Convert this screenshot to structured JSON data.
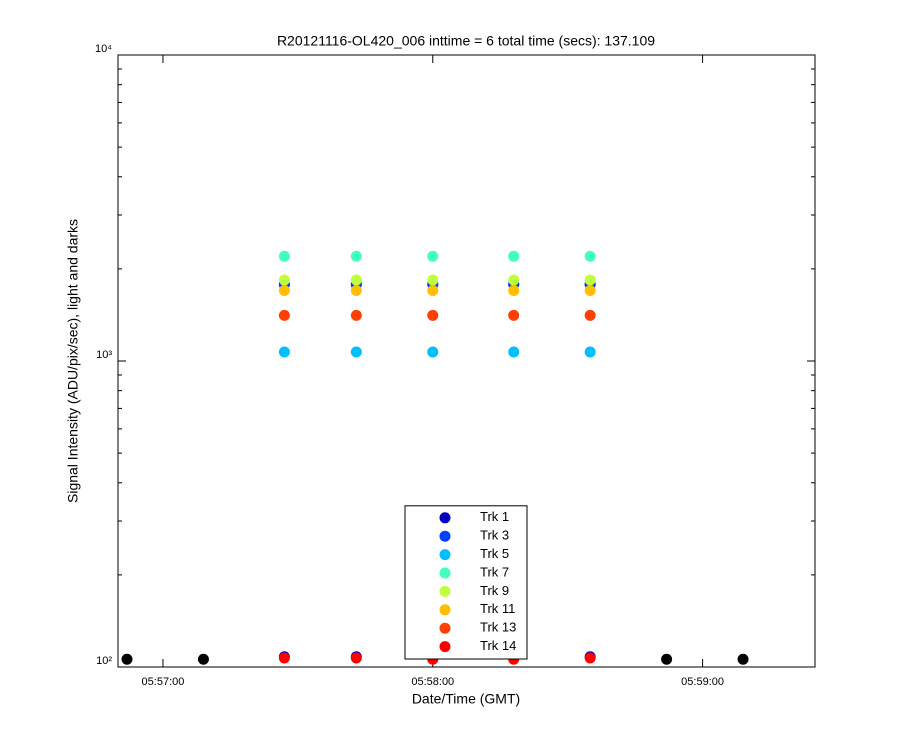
{
  "chart_data": {
    "type": "scatter",
    "title": "R20121116-OL420_006 inttime = 6 total time (secs): 137.109",
    "x_label": "Date/Time (GMT)",
    "y_label": "Signal Intensity (ADU/pix/sec), light and darks",
    "x": [
      "05:56:52",
      "05:57:09",
      "05:57:27",
      "05:57:43",
      "05:58:00",
      "05:58:18",
      "05:58:35",
      "05:58:52",
      "05:59:09"
    ],
    "xlim": [
      "05:56:50",
      "05:59:25"
    ],
    "xticks": [
      "05:57:00",
      "05:58:00",
      "05:59:00"
    ],
    "ylim": [
      100,
      10000
    ],
    "yticks": [
      {
        "value": 100,
        "label": "10²"
      },
      {
        "value": 1000,
        "label": "10³"
      },
      {
        "value": 10000,
        "label": "10⁴"
      }
    ],
    "log_y": true,
    "grid": false,
    "legend": "bottom",
    "series": [
      {
        "color": "#000000",
        "values": [
          106,
          106,
          null,
          null,
          null,
          null,
          null,
          106,
          106
        ]
      },
      {
        "color": "#0000c0",
        "values": [
          null,
          null,
          108,
          108,
          null,
          null,
          108,
          null,
          null
        ]
      },
      {
        "color": "#ff0000",
        "values": [
          null,
          null,
          107,
          107,
          106,
          106,
          107,
          null,
          null
        ]
      },
      {
        "name": "Trk 1",
        "color": "#0000c0",
        "values": [
          null,
          null,
          1780,
          1780,
          1780,
          1780,
          1780,
          null,
          null
        ]
      },
      {
        "name": "Trk 3",
        "color": "#0040ff",
        "values": [
          null,
          null,
          1780,
          1780,
          1780,
          1780,
          1780,
          null,
          null
        ]
      },
      {
        "name": "Trk 5",
        "color": "#00bfff",
        "values": [
          null,
          null,
          1070,
          1070,
          1070,
          1070,
          1070,
          null,
          null
        ]
      },
      {
        "name": "Trk 7",
        "color": "#40ffbf",
        "values": [
          null,
          null,
          2200,
          2200,
          2200,
          2200,
          2200,
          null,
          null
        ]
      },
      {
        "name": "Trk 9",
        "color": "#bfff40",
        "values": [
          null,
          null,
          1840,
          1840,
          1840,
          1840,
          1840,
          null,
          null
        ]
      },
      {
        "name": "Trk 11",
        "color": "#ffbf00",
        "values": [
          null,
          null,
          1700,
          1700,
          1700,
          1700,
          1700,
          null,
          null
        ]
      },
      {
        "name": "Trk 13",
        "color": "#ff4000",
        "values": [
          null,
          null,
          1410,
          1410,
          1410,
          1410,
          1410,
          null,
          null
        ]
      },
      {
        "name": "Trk 14",
        "color": "#ff0000",
        "values": [
          null,
          null,
          null,
          null,
          null,
          null,
          null,
          null,
          null
        ]
      }
    ]
  }
}
